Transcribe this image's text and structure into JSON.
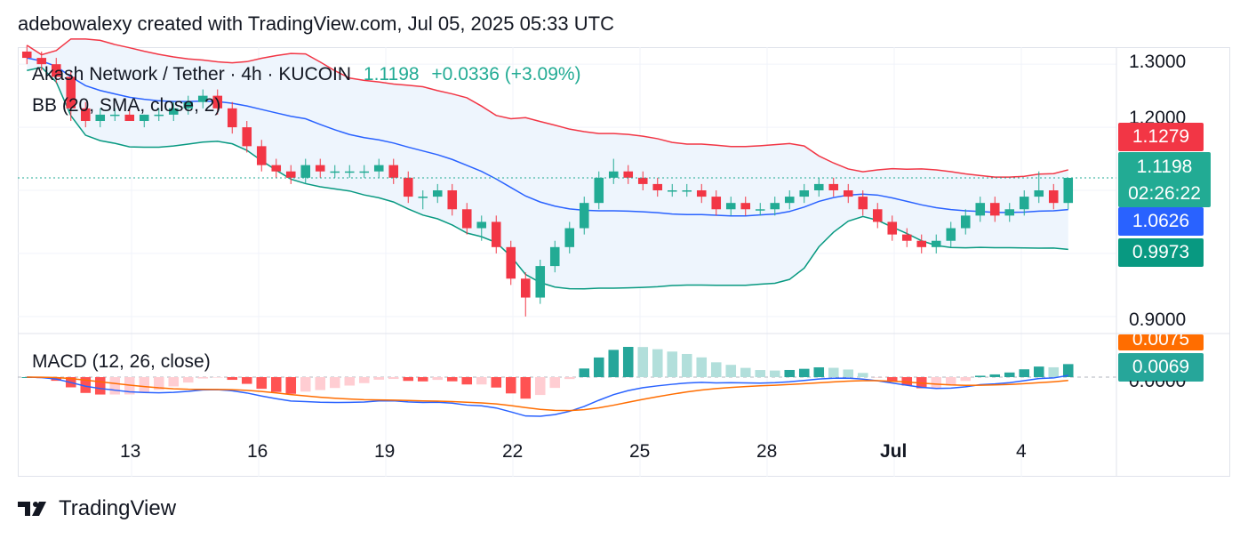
{
  "header": {
    "text": "adebowalexy created with TradingView.com, Jul 05, 2025 05:33 UTC"
  },
  "legend": {
    "symbol": "Akash Network / Tether · 4h · KUCOIN",
    "last": "1.1198",
    "change": "+0.0336 (+3.09%)",
    "bb": "BB (20, SMA, close, 2)",
    "macd": "MACD (12, 26, close)"
  },
  "price_tags": {
    "upper": "1.1279",
    "last": "1.1198",
    "countdown": "02:26:22",
    "basis": "1.0626",
    "lower": "0.9973",
    "macd_signal": "0.0075",
    "macd_line": "0.0069",
    "hidden_macd": "0.0000"
  },
  "colors": {
    "up": "#22ab94",
    "down": "#f23645",
    "bb_upper": "#f23645",
    "bb_basis": "#2962ff",
    "bb_lower": "#089981",
    "bb_fill": "#eef5fd",
    "macd": "#2962ff",
    "signal": "#ff6d00",
    "grid": "#f0f3fa",
    "last_line": "#22ab94",
    "upper_tag": "#f23645",
    "last_tag": "#22ab94",
    "basis_tag": "#2962ff",
    "lower_tag": "#089981",
    "signal_tag": "#ff6d00",
    "macd_tag": "#26a69a"
  },
  "footer": {
    "brand": "TradingView",
    "logo_icon": "tradingview-logo-icon"
  },
  "chart_data": {
    "type": "candlestick",
    "price_axis": {
      "ticks": [
        "1.3000",
        "1.2000",
        "0.9000"
      ],
      "ylim": [
        0.88,
        1.32
      ]
    },
    "time_axis": {
      "ticks": [
        "13",
        "16",
        "19",
        "22",
        "25",
        "28",
        "Jul",
        "4"
      ]
    },
    "grid": true,
    "candles_approx": [
      [
        1.32,
        1.33,
        1.3,
        1.31
      ],
      [
        1.31,
        1.32,
        1.29,
        1.3
      ],
      [
        1.3,
        1.31,
        1.27,
        1.28
      ],
      [
        1.28,
        1.29,
        1.21,
        1.23
      ],
      [
        1.23,
        1.24,
        1.2,
        1.21
      ],
      [
        1.21,
        1.23,
        1.2,
        1.22
      ],
      [
        1.22,
        1.23,
        1.21,
        1.22
      ],
      [
        1.22,
        1.23,
        1.21,
        1.21
      ],
      [
        1.21,
        1.22,
        1.2,
        1.22
      ],
      [
        1.22,
        1.23,
        1.21,
        1.22
      ],
      [
        1.22,
        1.24,
        1.21,
        1.23
      ],
      [
        1.23,
        1.25,
        1.22,
        1.24
      ],
      [
        1.24,
        1.26,
        1.23,
        1.25
      ],
      [
        1.25,
        1.26,
        1.22,
        1.23
      ],
      [
        1.23,
        1.24,
        1.19,
        1.2
      ],
      [
        1.2,
        1.21,
        1.16,
        1.17
      ],
      [
        1.17,
        1.18,
        1.13,
        1.14
      ],
      [
        1.14,
        1.15,
        1.12,
        1.13
      ],
      [
        1.13,
        1.14,
        1.11,
        1.12
      ],
      [
        1.12,
        1.15,
        1.11,
        1.14
      ],
      [
        1.14,
        1.15,
        1.12,
        1.13
      ],
      [
        1.13,
        1.14,
        1.12,
        1.13
      ],
      [
        1.13,
        1.14,
        1.12,
        1.13
      ],
      [
        1.13,
        1.14,
        1.12,
        1.13
      ],
      [
        1.13,
        1.15,
        1.12,
        1.14
      ],
      [
        1.14,
        1.15,
        1.11,
        1.12
      ],
      [
        1.12,
        1.13,
        1.08,
        1.09
      ],
      [
        1.09,
        1.1,
        1.07,
        1.09
      ],
      [
        1.09,
        1.11,
        1.08,
        1.1
      ],
      [
        1.1,
        1.11,
        1.06,
        1.07
      ],
      [
        1.07,
        1.08,
        1.03,
        1.04
      ],
      [
        1.04,
        1.06,
        1.02,
        1.05
      ],
      [
        1.05,
        1.06,
        1.0,
        1.01
      ],
      [
        1.01,
        1.02,
        0.95,
        0.96
      ],
      [
        0.96,
        0.97,
        0.9,
        0.93
      ],
      [
        0.93,
        0.99,
        0.92,
        0.98
      ],
      [
        0.98,
        1.02,
        0.97,
        1.01
      ],
      [
        1.01,
        1.05,
        1.0,
        1.04
      ],
      [
        1.04,
        1.09,
        1.03,
        1.08
      ],
      [
        1.08,
        1.13,
        1.07,
        1.12
      ],
      [
        1.12,
        1.15,
        1.11,
        1.13
      ],
      [
        1.13,
        1.14,
        1.11,
        1.12
      ],
      [
        1.12,
        1.13,
        1.1,
        1.11
      ],
      [
        1.11,
        1.12,
        1.09,
        1.1
      ],
      [
        1.1,
        1.11,
        1.09,
        1.1
      ],
      [
        1.1,
        1.11,
        1.09,
        1.1
      ],
      [
        1.1,
        1.11,
        1.08,
        1.09
      ],
      [
        1.09,
        1.1,
        1.06,
        1.07
      ],
      [
        1.07,
        1.09,
        1.06,
        1.08
      ],
      [
        1.08,
        1.09,
        1.06,
        1.07
      ],
      [
        1.07,
        1.08,
        1.06,
        1.07
      ],
      [
        1.07,
        1.09,
        1.06,
        1.08
      ],
      [
        1.08,
        1.1,
        1.07,
        1.09
      ],
      [
        1.09,
        1.11,
        1.08,
        1.1
      ],
      [
        1.1,
        1.12,
        1.09,
        1.11
      ],
      [
        1.11,
        1.12,
        1.09,
        1.1
      ],
      [
        1.1,
        1.11,
        1.08,
        1.09
      ],
      [
        1.09,
        1.1,
        1.06,
        1.07
      ],
      [
        1.07,
        1.08,
        1.04,
        1.05
      ],
      [
        1.05,
        1.06,
        1.02,
        1.03
      ],
      [
        1.03,
        1.04,
        1.01,
        1.02
      ],
      [
        1.02,
        1.03,
        1.0,
        1.01
      ],
      [
        1.01,
        1.03,
        1.0,
        1.02
      ],
      [
        1.02,
        1.05,
        1.01,
        1.04
      ],
      [
        1.04,
        1.07,
        1.03,
        1.06
      ],
      [
        1.06,
        1.09,
        1.05,
        1.08
      ],
      [
        1.08,
        1.09,
        1.05,
        1.06
      ],
      [
        1.06,
        1.08,
        1.05,
        1.07
      ],
      [
        1.07,
        1.1,
        1.06,
        1.09
      ],
      [
        1.09,
        1.13,
        1.08,
        1.1
      ],
      [
        1.1,
        1.11,
        1.07,
        1.08
      ],
      [
        1.08,
        1.12,
        1.07,
        1.1198
      ]
    ],
    "series": [
      {
        "name": "BB upper",
        "last": 1.1279
      },
      {
        "name": "BB basis",
        "last": 1.0626
      },
      {
        "name": "BB lower",
        "last": 0.9973
      },
      {
        "name": "MACD",
        "last": 0.0069
      },
      {
        "name": "Signal",
        "last": 0.0075
      }
    ],
    "last_price": 1.1198
  }
}
